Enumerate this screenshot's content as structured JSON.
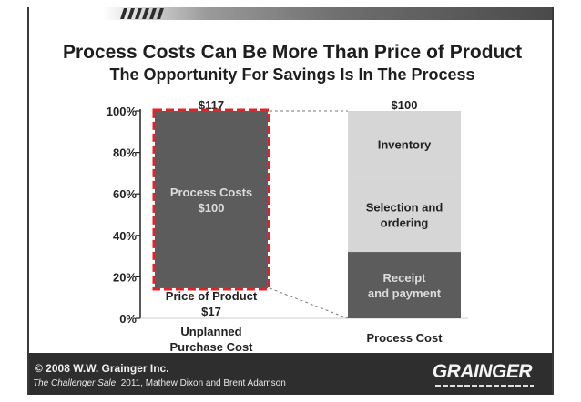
{
  "title": "Process Costs Can Be More Than Price of Product",
  "subtitle": "The Opportunity For Savings Is In The Process",
  "footer": {
    "copyright": "© 2008 W.W. Grainger Inc.",
    "source_book": "The Challenger Sale",
    "source_rest": ", 2011, Mathew Dixon and Brent Adamson",
    "logo": "GRAINGER"
  },
  "colors": {
    "dark_fill": "#5c5c5c",
    "light_fill": "#d6d6d6",
    "highlight_border": "#e0242b",
    "footer": "#2e2e2e"
  },
  "chart_data": {
    "type": "bar",
    "ylim": [
      0,
      100
    ],
    "y_ticks": [
      "0%",
      "20%",
      "40%",
      "60%",
      "80%",
      "100%"
    ],
    "grid": false,
    "bars": [
      {
        "category": "Unplanned Purchase Cost",
        "category_lines": [
          "Unplanned",
          "Purchase Cost"
        ],
        "total_label": "$117",
        "segments": [
          {
            "name": "Price of Product",
            "label_lines": [
              "Price of Product",
              "$17"
            ],
            "value": 14.5,
            "fill": "none"
          },
          {
            "name": "Process Costs",
            "label_lines": [
              "Process Costs",
              "$100"
            ],
            "value": 85.5,
            "fill": "dark"
          }
        ],
        "highlighted": true
      },
      {
        "category": "Process Cost",
        "category_lines": [
          "Process Cost"
        ],
        "total_label": "$100",
        "segments": [
          {
            "name": "Receipt and payment",
            "label_lines": [
              "Receipt",
              "and payment"
            ],
            "value": 32,
            "fill": "dark"
          },
          {
            "name": "Selection and ordering",
            "label_lines": [
              "Selection and",
              "ordering"
            ],
            "value": 36,
            "fill": "light"
          },
          {
            "name": "Inventory",
            "label_lines": [
              "Inventory"
            ],
            "value": 32,
            "fill": "light"
          }
        ],
        "highlighted": false
      }
    ]
  }
}
